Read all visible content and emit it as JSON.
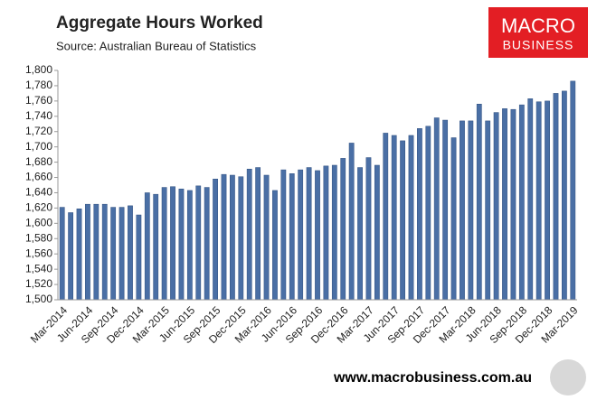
{
  "chart_data": {
    "type": "bar",
    "title": "Aggregate Hours Worked",
    "subtitle": "Source: Australian Bureau of Statistics",
    "logo": [
      "MACRO",
      "BUSINESS"
    ],
    "footer": "www.macrobusiness.com.au",
    "categories": [
      "Mar-2014",
      null,
      null,
      "Jun-2014",
      null,
      null,
      "Sep-2014",
      null,
      null,
      "Dec-2014",
      null,
      null,
      "Mar-2015",
      null,
      null,
      "Jun-2015",
      null,
      null,
      "Sep-2015",
      null,
      null,
      "Dec-2015",
      null,
      null,
      "Mar-2016",
      null,
      null,
      "Jun-2016",
      null,
      null,
      "Sep-2016",
      null,
      null,
      "Dec-2016",
      null,
      null,
      "Mar-2017",
      null,
      null,
      "Jun-2017",
      null,
      null,
      "Sep-2017",
      null,
      null,
      "Dec-2017",
      null,
      null,
      "Mar-2018",
      null,
      null,
      "Jun-2018",
      null,
      null,
      "Sep-2018",
      null,
      null,
      "Dec-2018",
      null,
      null,
      "Mar-2019"
    ],
    "values": [
      1621,
      1614,
      1619,
      1625,
      1625,
      1625,
      1621,
      1621,
      1623,
      1611,
      1640,
      1638,
      1647,
      1648,
      1645,
      1643,
      1649,
      1647,
      1658,
      1664,
      1663,
      1661,
      1671,
      1673,
      1663,
      1643,
      1670,
      1665,
      1670,
      1673,
      1669,
      1675,
      1676,
      1685,
      1705,
      1673,
      1686,
      1676,
      1718,
      1715,
      1708,
      1715,
      1724,
      1727,
      1738,
      1735,
      1712,
      1734,
      1734,
      1756,
      1734,
      1745,
      1750,
      1749,
      1755,
      1763,
      1759,
      1760,
      1770,
      1773,
      1786
    ],
    "color": "#4a6fa5",
    "ylim": [
      1500,
      1800
    ],
    "yticks": [
      {
        "value": 1500,
        "label": "1,500"
      },
      {
        "value": 1520,
        "label": "1,520"
      },
      {
        "value": 1540,
        "label": "1,540"
      },
      {
        "value": 1560,
        "label": "1,560"
      },
      {
        "value": 1580,
        "label": "1,580"
      },
      {
        "value": 1600,
        "label": "1,600"
      },
      {
        "value": 1620,
        "label": "1,620"
      },
      {
        "value": 1640,
        "label": "1,640"
      },
      {
        "value": 1660,
        "label": "1,660"
      },
      {
        "value": 1680,
        "label": "1,680"
      },
      {
        "value": 1700,
        "label": "1,700"
      },
      {
        "value": 1720,
        "label": "1,720"
      },
      {
        "value": 1740,
        "label": "1,740"
      },
      {
        "value": 1760,
        "label": "1,760"
      },
      {
        "value": 1780,
        "label": "1,780"
      },
      {
        "value": 1800,
        "label": "1,800"
      }
    ],
    "grid": false
  }
}
